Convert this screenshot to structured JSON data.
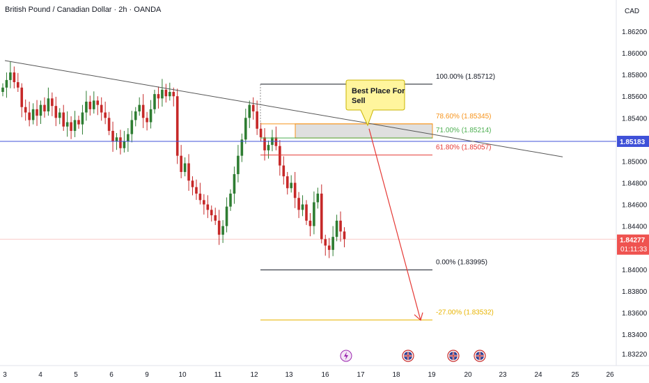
{
  "header": {
    "symbol_title": "British Pound / Canadian Dollar · 2h · OANDA",
    "currency": "CAD"
  },
  "price_axis": {
    "ticks": [
      "1.86200",
      "1.86000",
      "1.85800",
      "1.85600",
      "1.85400",
      "1.85200",
      "1.85000",
      "1.84800",
      "1.84600",
      "1.84400",
      "1.84200",
      "1.84000",
      "1.83800",
      "1.83600",
      "1.83400",
      "1.83220"
    ]
  },
  "badges": {
    "horizontal_line_price": "1.85183",
    "current_price": "1.84277",
    "countdown": "01:11:33"
  },
  "time_axis": {
    "labels": [
      "3",
      "4",
      "5",
      "6",
      "9",
      "10",
      "11",
      "12",
      "13",
      "16",
      "17",
      "18",
      "19",
      "20",
      "23",
      "24",
      "25",
      "26"
    ]
  },
  "fib_levels": [
    {
      "label": "100.00% (1.85712)",
      "color": "#131722"
    },
    {
      "label": "78.60% (1.85345)",
      "color": "#f7931a"
    },
    {
      "label": "71.00% (1.85214)",
      "color": "#4caf50"
    },
    {
      "label": "61.80% (1.85057)",
      "color": "#e53935"
    },
    {
      "label": "0.00% (1.83995)",
      "color": "#131722"
    },
    {
      "label": "-27.00% (1.83532)",
      "color": "#e8b400"
    }
  ],
  "callout": {
    "text_line1": "Best Place For",
    "text_line2": "Sell"
  },
  "event_icons": [
    "lightning-icon",
    "uk-flag-icon",
    "uk-flag-icon",
    "uk-flag-icon"
  ],
  "colors": {
    "bull": "#26a69a",
    "bear": "#ef5350",
    "candle_up": "#2e7d32",
    "candle_down": "#c62828",
    "horizontal_line": "#3f51d8",
    "projection_arrow": "#e53935",
    "zone_fill": "#d9d9d9",
    "callout_fill": "#fff59d"
  },
  "chart_data": {
    "type": "candlestick",
    "title": "British Pound / Canadian Dollar · 2h · OANDA",
    "ylabel": "CAD",
    "ylim": [
      1.8318,
      1.8632
    ],
    "x_labels": [
      "3",
      "4",
      "5",
      "6",
      "9",
      "10",
      "11",
      "12",
      "13",
      "16",
      "17",
      "18",
      "19",
      "20",
      "23",
      "24",
      "25",
      "26"
    ],
    "horizontal_line": 1.85183,
    "current_price": 1.84277,
    "trendline": {
      "start": {
        "x": "3",
        "y": 1.8593
      },
      "end": {
        "x": "25",
        "y": 1.8504
      }
    },
    "fibonacci": {
      "high": 1.85712,
      "low": 1.83995,
      "levels": [
        {
          "ratio": 1.0,
          "price": 1.85712
        },
        {
          "ratio": 0.786,
          "price": 1.85345
        },
        {
          "ratio": 0.71,
          "price": 1.85214
        },
        {
          "ratio": 0.618,
          "price": 1.85057
        },
        {
          "ratio": 0.0,
          "price": 1.83995
        },
        {
          "ratio": -0.27,
          "price": 1.83532
        }
      ]
    },
    "sell_zone": {
      "from": 1.85214,
      "to": 1.85345
    },
    "projection": {
      "from_price": 1.853,
      "to_price": 1.8353
    },
    "candles_close_path": [
      1.8568,
      1.8575,
      1.8582,
      1.8573,
      1.8568,
      1.855,
      1.8545,
      1.8538,
      1.8548,
      1.8542,
      1.8552,
      1.8546,
      1.8558,
      1.8551,
      1.854,
      1.8545,
      1.8532,
      1.8536,
      1.8528,
      1.8538,
      1.8534,
      1.8545,
      1.8555,
      1.8548,
      1.8556,
      1.8552,
      1.8545,
      1.854,
      1.8528,
      1.8518,
      1.8522,
      1.8512,
      1.8518,
      1.8525,
      1.8538,
      1.8546,
      1.8552,
      1.854,
      1.8536,
      1.8548,
      1.8562,
      1.8558,
      1.8566,
      1.856,
      1.8564,
      1.856,
      1.8505,
      1.849,
      1.8498,
      1.8482,
      1.8476,
      1.847,
      1.8464,
      1.846,
      1.8455,
      1.845,
      1.8445,
      1.8432,
      1.844,
      1.8458,
      1.847,
      1.8488,
      1.8505,
      1.852,
      1.854,
      1.8552,
      1.8546,
      1.853,
      1.8522,
      1.851,
      1.8515,
      1.8522,
      1.8514,
      1.8496,
      1.8486,
      1.8475,
      1.848,
      1.8466,
      1.8455,
      1.846,
      1.8445,
      1.844,
      1.8462,
      1.847,
      1.8428,
      1.8422,
      1.8418,
      1.843,
      1.8445,
      1.8435,
      1.8428
    ]
  }
}
